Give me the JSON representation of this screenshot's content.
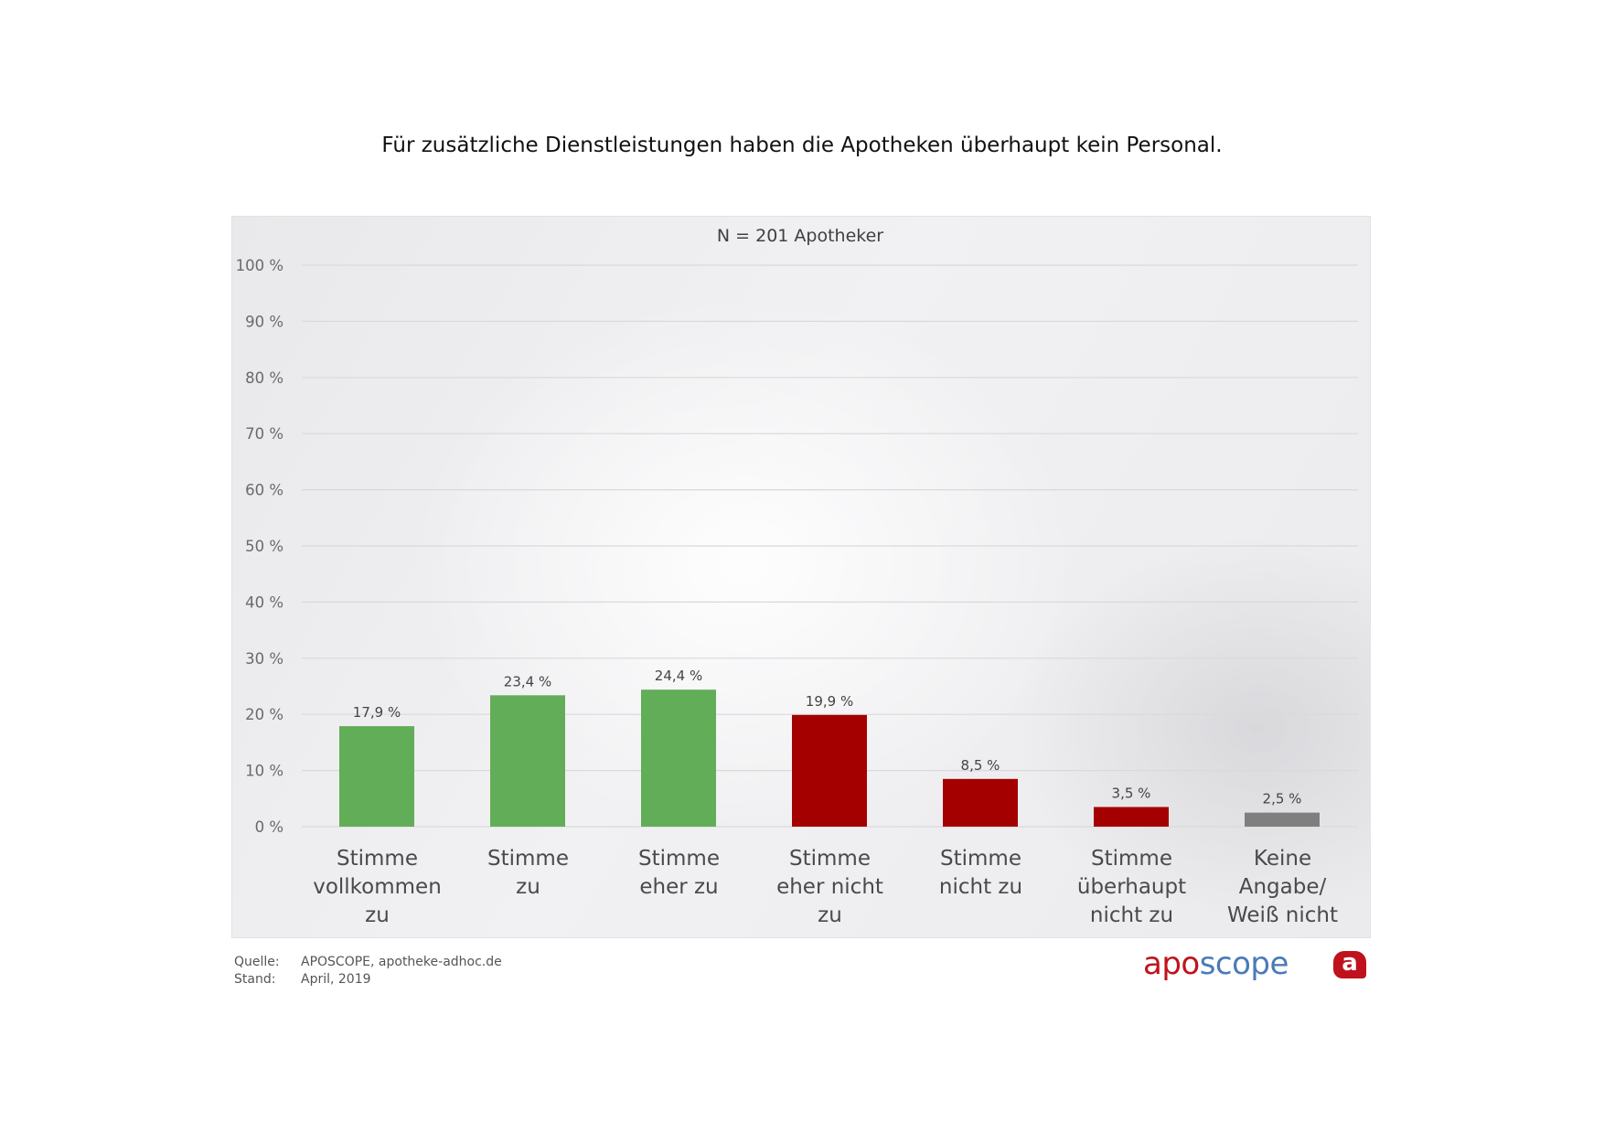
{
  "title": "Für zusätzliche Dienstleistungen haben die Apotheken überhaupt kein Personal.",
  "chart_data": {
    "type": "bar",
    "title": "Für zusätzliche Dienstleistungen haben die Apotheken überhaupt kein Personal.",
    "subtitle": "N = 201 Apotheker",
    "categories": [
      "Stimme\nvollkommen\nzu",
      "Stimme\nzu",
      "Stimme\neher zu",
      "Stimme\neher nicht\nzu",
      "Stimme\nnicht zu",
      "Stimme\nüberhaupt\nnicht zu",
      "Keine Angabe/\nWeiß nicht"
    ],
    "values": [
      17.9,
      23.4,
      24.4,
      19.9,
      8.5,
      3.5,
      2.5
    ],
    "value_labels": [
      "17,9 %",
      "23,4 %",
      "24,4 %",
      "19,9 %",
      "8,5 %",
      "3,5 %",
      "2,5 %"
    ],
    "bar_colors": [
      "#62ad57",
      "#62ad57",
      "#62ad57",
      "#a50000",
      "#a50000",
      "#a50000",
      "#7f7f7f"
    ],
    "ylim": [
      0,
      100
    ],
    "yticks": [
      0,
      10,
      20,
      30,
      40,
      50,
      60,
      70,
      80,
      90,
      100
    ],
    "ytick_labels": [
      "0 %",
      "10 %",
      "20 %",
      "30 %",
      "40 %",
      "50 %",
      "60 %",
      "70 %",
      "80 %",
      "90 %",
      "100 %"
    ],
    "xlabel": "",
    "ylabel": "",
    "grid": true,
    "legend": "none"
  },
  "footer": {
    "source_label": "Quelle:",
    "source_value": "APOSCOPE, apotheke-adhoc.de",
    "date_label": "Stand:",
    "date_value": "April, 2019"
  },
  "logo": {
    "part1": "apo",
    "part2": "scope",
    "icon_letter": "a"
  }
}
